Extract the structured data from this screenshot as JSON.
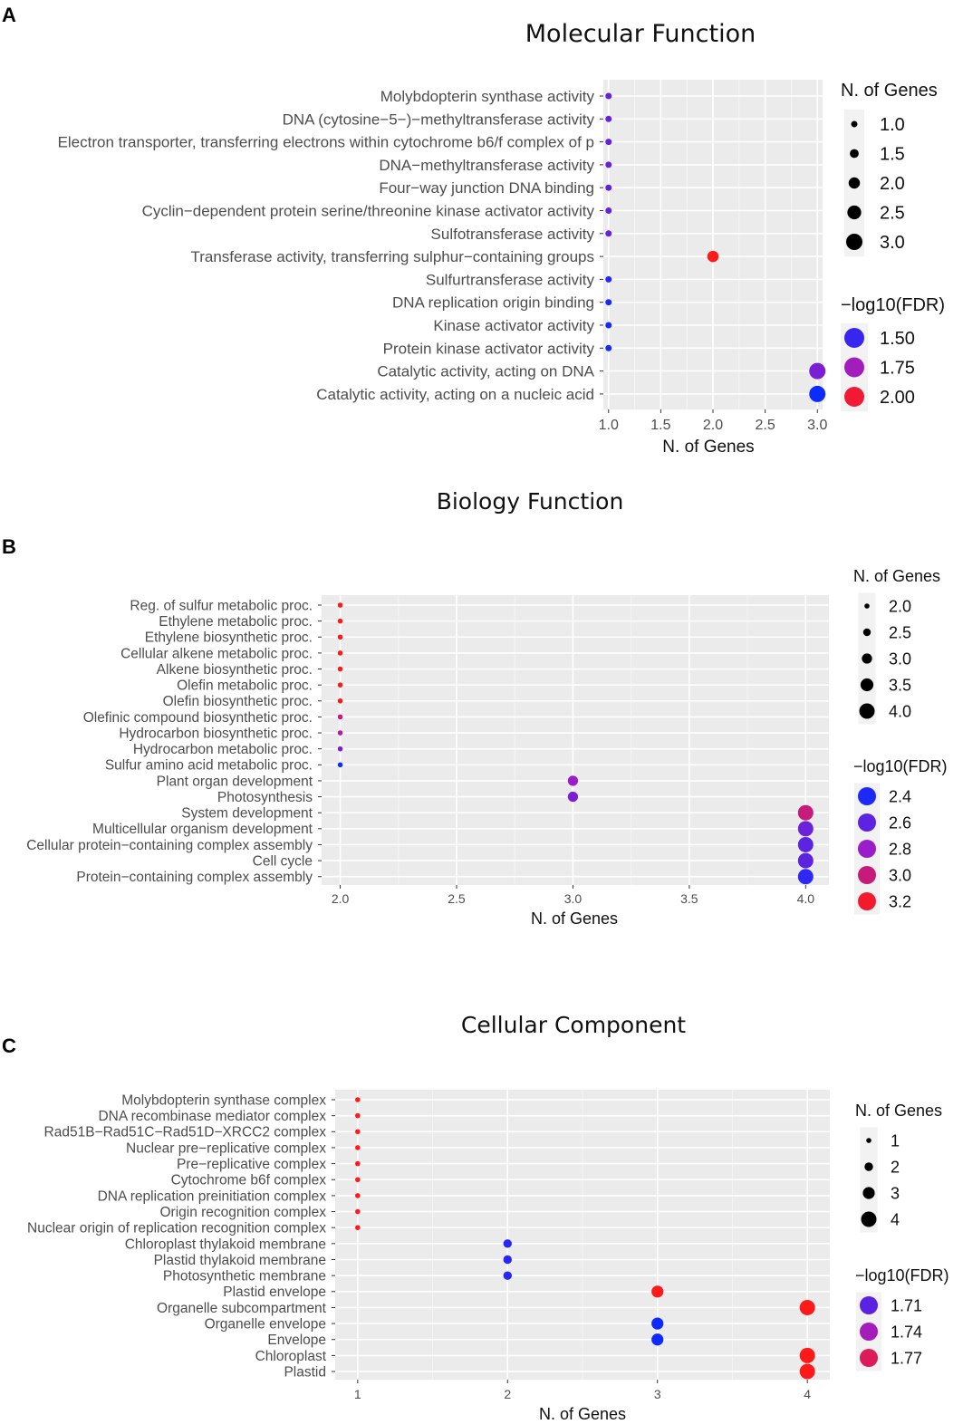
{
  "figure": {
    "panel_labels": [
      "A",
      "B",
      "C"
    ]
  },
  "chart_data": [
    {
      "type": "scatter",
      "panel": "A",
      "title": "Molecular Function",
      "xlabel": "N. of Genes",
      "ylabel": "",
      "xlim": [
        0.95,
        3.05
      ],
      "xticks": [
        1.0,
        1.5,
        2.0,
        2.5,
        3.0
      ],
      "xtick_labels": [
        "1.0",
        "1.5",
        "2.0",
        "2.5",
        "3.0"
      ],
      "grid": true,
      "categories": [
        "Molybdopterin synthase activity",
        "DNA (cytosine−5−)−methyltransferase activity",
        "Electron transporter, transferring electrons within cytochrome b6/f complex of p",
        "DNA−methyltransferase activity",
        "Four−way junction DNA binding",
        "Cyclin−dependent protein serine/threonine kinase activator activity",
        "Sulfotransferase activity",
        "Transferase activity, transferring sulphur−containing groups",
        "Sulfurtransferase activity",
        "DNA replication origin binding",
        "Kinase activator activity",
        "Protein kinase activator activity",
        "Catalytic activity, acting on DNA",
        "Catalytic activity, acting on a nucleic acid"
      ],
      "genes": [
        1,
        1,
        1,
        1,
        1,
        1,
        1,
        2,
        1,
        1,
        1,
        1,
        3,
        3
      ],
      "neg_log10_fdr": [
        1.6,
        1.6,
        1.6,
        1.6,
        1.6,
        1.6,
        1.6,
        2.05,
        1.45,
        1.42,
        1.42,
        1.42,
        1.65,
        1.4
      ],
      "color_range": [
        1.4,
        2.05
      ],
      "size_range": [
        1,
        3
      ],
      "color_low": "#0d2bff",
      "color_mid": "#9b1cc9",
      "color_high": "#ff1a1a",
      "legend_size_title": "N. of Genes",
      "legend_size_values": [
        1.0,
        1.5,
        2.0,
        2.5,
        3.0
      ],
      "legend_size_labels": [
        "1.0",
        "1.5",
        "2.0",
        "2.5",
        "3.0"
      ],
      "legend_color_title": "−log10(FDR)",
      "legend_color_values": [
        1.5,
        1.75,
        2.0
      ],
      "legend_color_labels": [
        "1.50",
        "1.75",
        "2.00"
      ]
    },
    {
      "type": "scatter",
      "panel": "B",
      "title": "Biology Function",
      "xlabel": "N. of Genes",
      "ylabel": "",
      "xlim": [
        1.92,
        4.1
      ],
      "xticks": [
        2.0,
        2.5,
        3.0,
        3.5,
        4.0
      ],
      "xtick_labels": [
        "2.0",
        "2.5",
        "3.0",
        "3.5",
        "4.0"
      ],
      "grid": true,
      "categories": [
        "Reg. of sulfur metabolic proc.",
        "Ethylene metabolic proc.",
        "Ethylene biosynthetic proc.",
        "Cellular alkene metabolic proc.",
        "Alkene biosynthetic proc.",
        "Olefin metabolic proc.",
        "Olefin biosynthetic proc.",
        "Olefinic compound biosynthetic proc.",
        "Hydrocarbon biosynthetic proc.",
        "Hydrocarbon metabolic proc.",
        "Sulfur amino acid metabolic proc.",
        "Plant organ development",
        "Photosynthesis",
        "System development",
        "Multicellular organism development",
        "Cellular protein−containing complex assembly",
        "Cell cycle",
        "Protein−containing complex assembly"
      ],
      "genes": [
        2,
        2,
        2,
        2,
        2,
        2,
        2,
        2,
        2,
        2,
        2,
        3,
        3,
        4,
        4,
        4,
        4,
        4
      ],
      "neg_log10_fdr": [
        3.25,
        3.25,
        3.25,
        3.25,
        3.25,
        3.25,
        3.25,
        3.0,
        2.9,
        2.7,
        2.35,
        2.8,
        2.7,
        3.0,
        2.65,
        2.6,
        2.6,
        2.45
      ],
      "color_range": [
        2.35,
        3.25
      ],
      "size_range": [
        2,
        4
      ],
      "color_low": "#0d2bff",
      "color_mid": "#9b1cc9",
      "color_high": "#ff1a1a",
      "legend_size_title": "N. of Genes",
      "legend_size_values": [
        2.0,
        2.5,
        3.0,
        3.5,
        4.0
      ],
      "legend_size_labels": [
        "2.0",
        "2.5",
        "3.0",
        "3.5",
        "4.0"
      ],
      "legend_color_title": "−log10(FDR)",
      "legend_color_values": [
        2.4,
        2.6,
        2.8,
        3.0,
        3.2
      ],
      "legend_color_labels": [
        "2.4",
        "2.6",
        "2.8",
        "3.0",
        "3.2"
      ]
    },
    {
      "type": "scatter",
      "panel": "C",
      "title": "Cellular Component",
      "xlabel": "N. of Genes",
      "ylabel": "",
      "xlim": [
        0.85,
        4.15
      ],
      "xticks": [
        1,
        2,
        3,
        4
      ],
      "xtick_labels": [
        "1",
        "2",
        "3",
        "4"
      ],
      "grid": true,
      "categories": [
        "Molybdopterin synthase complex",
        "DNA recombinase mediator complex",
        "Rad51B−Rad51C−Rad51D−XRCC2 complex",
        "Nuclear pre−replicative complex",
        "Pre−replicative complex",
        "Cytochrome b6f complex",
        "DNA replication preinitiation complex",
        "Origin recognition complex",
        "Nuclear origin of replication recognition complex",
        "Chloroplast thylakoid membrane",
        "Plastid thylakoid membrane",
        "Photosynthetic membrane",
        "Plastid envelope",
        "Organelle subcompartment",
        "Organelle envelope",
        "Envelope",
        "Chloroplast",
        "Plastid"
      ],
      "genes": [
        1,
        1,
        1,
        1,
        1,
        1,
        1,
        1,
        1,
        2,
        2,
        2,
        3,
        4,
        3,
        3,
        4,
        4
      ],
      "neg_log10_fdr": [
        1.79,
        1.79,
        1.79,
        1.79,
        1.79,
        1.79,
        1.79,
        1.79,
        1.79,
        1.69,
        1.69,
        1.69,
        1.79,
        1.79,
        1.68,
        1.68,
        1.79,
        1.79
      ],
      "color_range": [
        1.68,
        1.79
      ],
      "size_range": [
        1,
        4
      ],
      "color_low": "#0d2bff",
      "color_mid": "#9b1cc9",
      "color_high": "#ff1a1a",
      "legend_size_title": "N. of Genes",
      "legend_size_values": [
        1,
        2,
        3,
        4
      ],
      "legend_size_labels": [
        "1",
        "2",
        "3",
        "4"
      ],
      "legend_color_title": "−log10(FDR)",
      "legend_color_values": [
        1.71,
        1.74,
        1.77
      ],
      "legend_color_labels": [
        "1.71",
        "1.74",
        "1.77"
      ]
    }
  ]
}
